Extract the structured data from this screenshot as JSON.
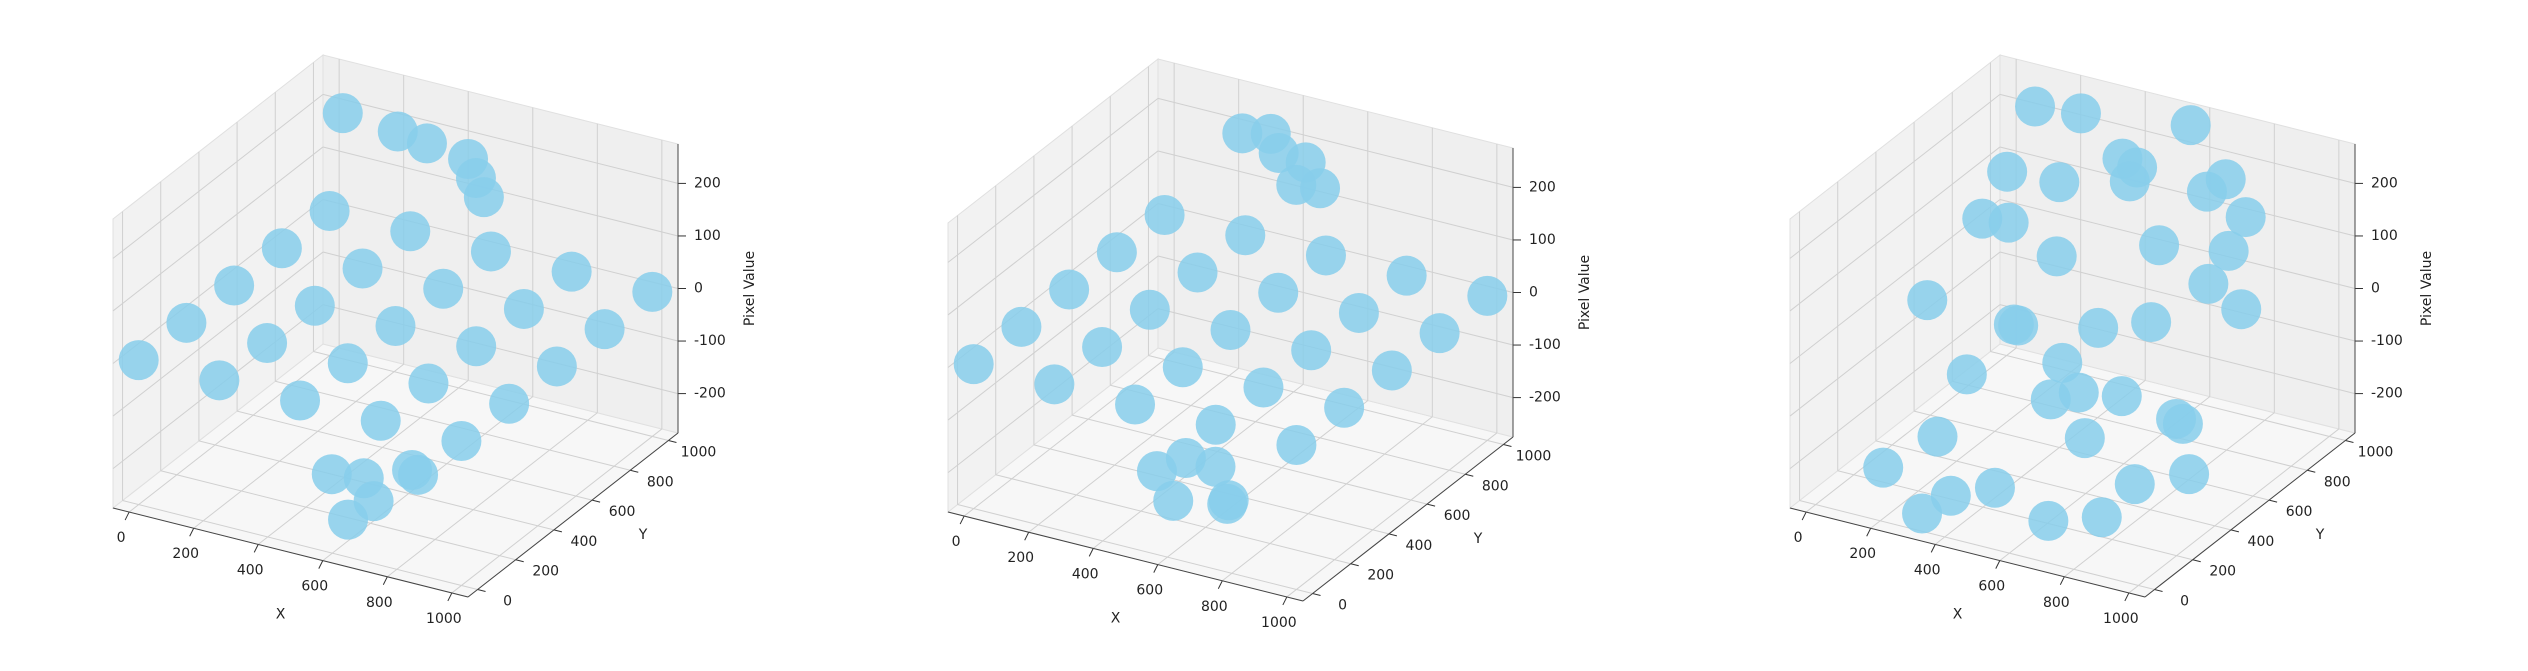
{
  "chart_data": [
    {
      "type": "scatter3d",
      "xlabel": "X",
      "ylabel": "Y",
      "zlabel": "Pixel Value",
      "color": "#87ceeb",
      "xlim": [
        -50,
        1050
      ],
      "ylim": [
        -50,
        1050
      ],
      "zlim": [
        -275,
        275
      ],
      "xticks": [
        0,
        200,
        400,
        600,
        800,
        1000
      ],
      "yticks": [
        0,
        200,
        400,
        600,
        800,
        1000
      ],
      "zticks": [
        -200,
        -100,
        0,
        100,
        200
      ],
      "x": [
        0,
        250,
        500,
        750,
        1000,
        0,
        250,
        500,
        750,
        1000,
        0,
        250,
        500,
        750,
        1000,
        0,
        250,
        500,
        750,
        1000,
        0,
        250,
        500,
        750,
        1000,
        100,
        300,
        420,
        500,
        560,
        620,
        480,
        520,
        580,
        640,
        700,
        560
      ],
      "y": [
        0,
        0,
        0,
        0,
        0,
        250,
        250,
        250,
        250,
        250,
        500,
        500,
        500,
        500,
        500,
        750,
        750,
        750,
        750,
        750,
        1000,
        1000,
        1000,
        1000,
        1000,
        900,
        850,
        800,
        880,
        820,
        760,
        200,
        300,
        250,
        350,
        280,
        150
      ],
      "z": [
        0,
        0,
        0,
        0,
        0,
        0,
        0,
        0,
        0,
        0,
        0,
        0,
        0,
        0,
        0,
        0,
        0,
        0,
        0,
        0,
        0,
        0,
        0,
        0,
        0,
        230,
        240,
        250,
        210,
        200,
        190,
        -200,
        -230,
        -250,
        -210,
        -190,
        -260
      ]
    },
    {
      "type": "scatter3d",
      "xlabel": "X",
      "ylabel": "Y",
      "zlabel": "Pixel Value",
      "color": "#87ceeb",
      "xlim": [
        -50,
        1050
      ],
      "ylim": [
        -50,
        1050
      ],
      "zlim": [
        -275,
        275
      ],
      "xticks": [
        0,
        200,
        400,
        600,
        800,
        1000
      ],
      "yticks": [
        0,
        200,
        400,
        600,
        800,
        1000
      ],
      "zticks": [
        -200,
        -100,
        0,
        100,
        200
      ],
      "x": [
        0,
        250,
        500,
        750,
        1000,
        0,
        250,
        500,
        750,
        1000,
        0,
        250,
        500,
        750,
        1000,
        0,
        250,
        500,
        750,
        1000,
        0,
        250,
        500,
        750,
        1000,
        300,
        400,
        460,
        520,
        600,
        550,
        420,
        500,
        560,
        620,
        660,
        480
      ],
      "y": [
        0,
        0,
        0,
        0,
        0,
        250,
        250,
        250,
        250,
        250,
        500,
        500,
        500,
        500,
        500,
        750,
        750,
        750,
        750,
        750,
        1000,
        1000,
        1000,
        1000,
        1000,
        900,
        880,
        820,
        860,
        800,
        760,
        250,
        200,
        320,
        280,
        220,
        300
      ],
      "z": [
        0,
        0,
        0,
        0,
        0,
        0,
        0,
        0,
        0,
        0,
        0,
        0,
        0,
        0,
        0,
        0,
        0,
        0,
        0,
        0,
        0,
        0,
        0,
        0,
        0,
        230,
        250,
        240,
        220,
        200,
        210,
        -210,
        -240,
        -200,
        -250,
        -220,
        -190
      ]
    },
    {
      "type": "scatter3d",
      "xlabel": "X",
      "ylabel": "Y",
      "zlabel": "Pixel Value",
      "color": "#87ceeb",
      "xlim": [
        -50,
        1050
      ],
      "ylim": [
        -50,
        1050
      ],
      "zlim": [
        -275,
        275
      ],
      "xticks": [
        0,
        200,
        400,
        600,
        800,
        1000
      ],
      "yticks": [
        0,
        200,
        400,
        600,
        800,
        1000
      ],
      "zticks": [
        -200,
        -100,
        0,
        100,
        200
      ],
      "x": [
        50,
        120,
        200,
        260,
        330,
        380,
        430,
        480,
        520,
        570,
        620,
        680,
        720,
        780,
        830,
        880,
        940,
        990,
        150,
        250,
        350,
        450,
        550,
        650,
        750,
        850,
        950,
        100,
        300,
        500,
        700,
        900,
        400,
        600,
        200,
        800,
        450,
        550,
        650,
        350
      ],
      "y": [
        500,
        800,
        300,
        950,
        150,
        620,
        880,
        420,
        60,
        720,
        330,
        900,
        540,
        180,
        760,
        400,
        640,
        250,
        100,
        450,
        700,
        250,
        550,
        120,
        880,
        620,
        350,
        980,
        50,
        800,
        420,
        150,
        600,
        950,
        700,
        900,
        300,
        480,
        700,
        200
      ],
      "z": [
        -20,
        150,
        -200,
        240,
        -250,
        80,
        200,
        -120,
        -180,
        250,
        -60,
        170,
        30,
        -230,
        120,
        -90,
        60,
        -40,
        -210,
        180,
        -150,
        260,
        -10,
        -240,
        210,
        100,
        -170,
        220,
        -260,
        190,
        -80,
        -140,
        230,
        270,
        -100,
        140,
        50,
        -200,
        120,
        -30
      ]
    }
  ]
}
